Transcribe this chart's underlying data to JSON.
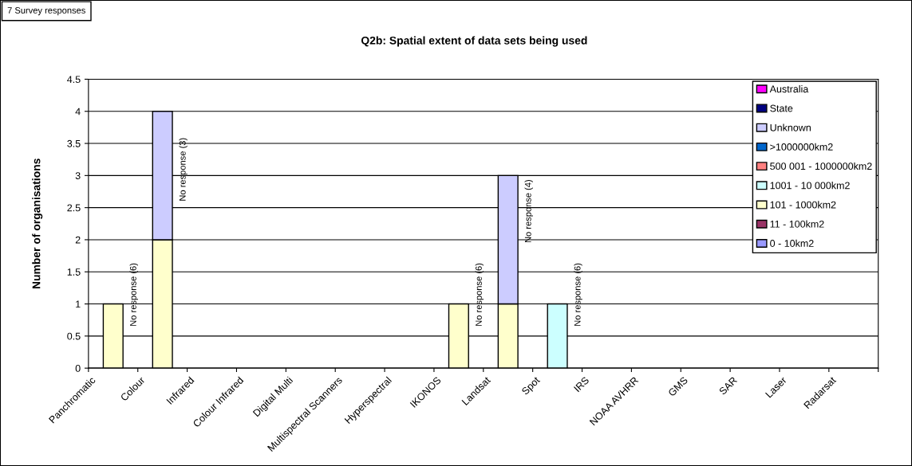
{
  "chart_data": {
    "type": "bar",
    "stacked": true,
    "title": "Q2b: Spatial extent of data sets being used",
    "ylabel": "Number of organisations",
    "categories": [
      "Panchromatic",
      "Colour",
      "Infrared",
      "Colour Infrared",
      "Digital Multi",
      "Multispectral Scanners",
      "Hyperspectral",
      "IKONOS",
      "Landsat",
      "Spot",
      "IRS",
      "NOAA AVHRR",
      "GMS",
      "SAR",
      "Laser",
      "Radarsat"
    ],
    "series": [
      {
        "name": "0 - 10km2",
        "color": "#9999ff",
        "values": [
          null,
          null,
          null,
          null,
          null,
          null,
          null,
          null,
          null,
          null,
          null,
          null,
          null,
          null,
          null,
          null
        ]
      },
      {
        "name": "11 - 100km2",
        "color": "#993366",
        "values": [
          null,
          null,
          null,
          null,
          null,
          null,
          null,
          null,
          null,
          null,
          null,
          null,
          null,
          null,
          null,
          null
        ]
      },
      {
        "name": "101 - 1000km2",
        "color": "#ffffcc",
        "values": [
          1,
          2,
          null,
          null,
          null,
          null,
          null,
          1,
          1,
          null,
          null,
          null,
          null,
          null,
          null,
          null
        ]
      },
      {
        "name": "1001 - 10 000km2",
        "color": "#ccffff",
        "values": [
          null,
          null,
          null,
          null,
          null,
          null,
          null,
          null,
          null,
          1,
          null,
          null,
          null,
          null,
          null,
          null
        ]
      },
      {
        "name": "500 001 - 1000000km2",
        "color": "#ff8080",
        "values": [
          null,
          null,
          null,
          null,
          null,
          null,
          null,
          null,
          null,
          null,
          null,
          null,
          null,
          null,
          null,
          null
        ]
      },
      {
        "name": ">1000000km2",
        "color": "#0066cc",
        "values": [
          null,
          null,
          null,
          null,
          null,
          null,
          null,
          null,
          null,
          null,
          null,
          null,
          null,
          null,
          null,
          null
        ]
      },
      {
        "name": "Unknown",
        "color": "#ccccff",
        "values": [
          null,
          2,
          null,
          null,
          null,
          null,
          null,
          null,
          2,
          null,
          null,
          null,
          null,
          null,
          null,
          null
        ]
      },
      {
        "name": "State",
        "color": "#000080",
        "values": [
          null,
          null,
          null,
          null,
          null,
          null,
          null,
          null,
          null,
          null,
          null,
          null,
          null,
          null,
          null,
          null
        ]
      },
      {
        "name": "Australia",
        "color": "#ff00ff",
        "values": [
          null,
          null,
          null,
          null,
          null,
          null,
          null,
          null,
          null,
          null,
          null,
          null,
          null,
          null,
          null,
          null
        ]
      }
    ],
    "ylim": [
      0,
      4.5
    ],
    "yticks": [
      0,
      0.5,
      1,
      1.5,
      2,
      2.5,
      3,
      3.5,
      4,
      4.5
    ],
    "grid": "y",
    "legend": "top right",
    "annotations": [
      "7 Survey responses",
      "No response (6)",
      "No response (3)",
      "No response (6)",
      "No response (4)",
      "No response (6)"
    ]
  }
}
